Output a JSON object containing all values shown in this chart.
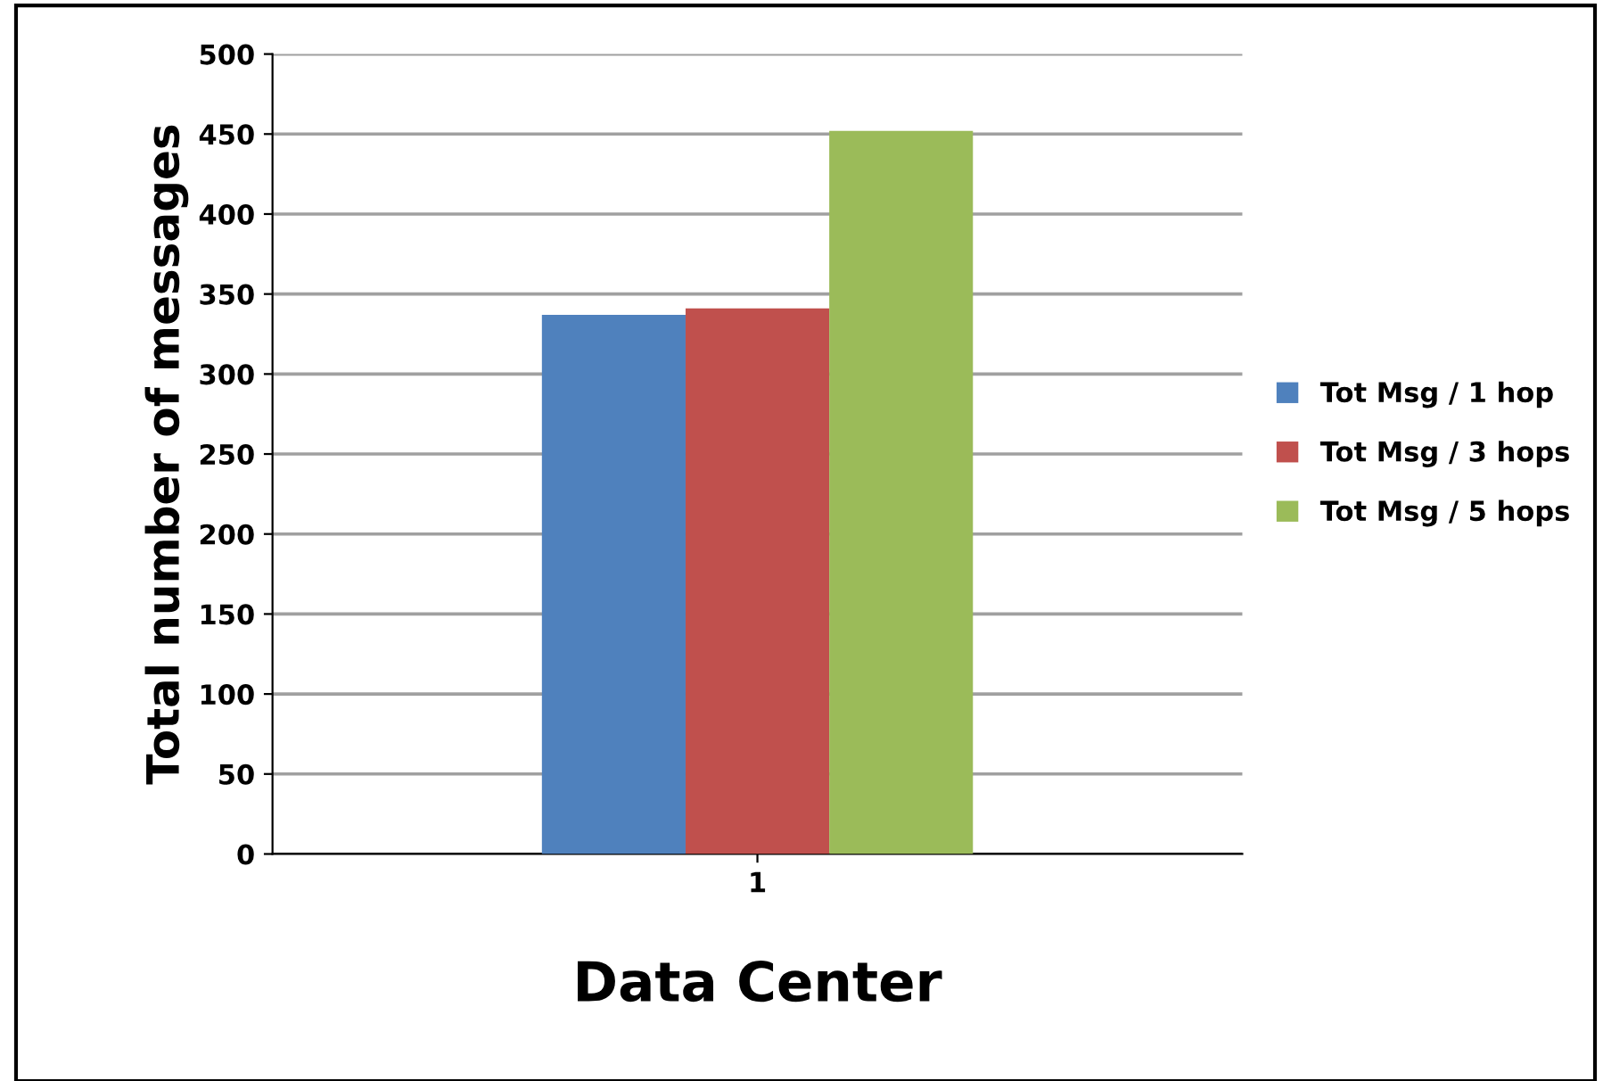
{
  "chart_data": {
    "type": "bar",
    "xlabel": "Data Center",
    "ylabel": "Total number of messages",
    "categories": [
      "1"
    ],
    "series": [
      {
        "name": "Tot Msg / 1 hop",
        "color": "#4f81bd",
        "values": [
          337
        ]
      },
      {
        "name": "Tot Msg / 3 hops",
        "color": "#c0504d",
        "values": [
          341
        ]
      },
      {
        "name": "Tot Msg / 5 hops",
        "color": "#9bbb59",
        "values": [
          452
        ]
      }
    ],
    "ylim": [
      0,
      500
    ],
    "yticks": [
      0,
      50,
      100,
      150,
      200,
      250,
      300,
      350,
      400,
      450,
      500
    ],
    "grid": "y",
    "legend": "right"
  }
}
